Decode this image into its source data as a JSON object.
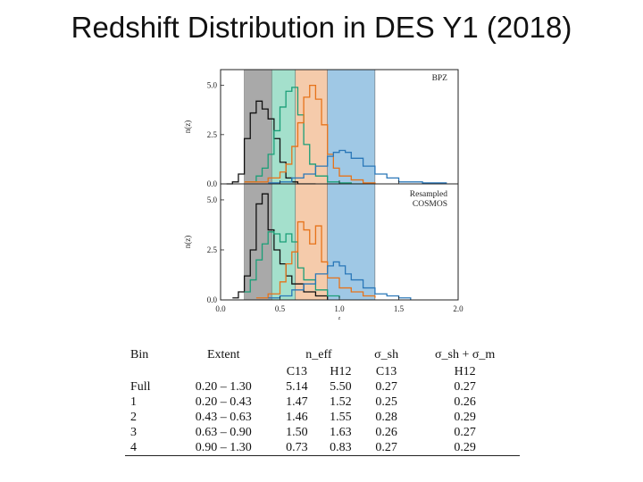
{
  "title": "Redshift Distribution in DES Y1 (2018)",
  "colors": {
    "bin1": "#111111",
    "bin2": "#1a9e77",
    "bin3": "#e6731a",
    "bin4": "#2a77b8",
    "band1": "#8c8c8c",
    "band2": "#86d6bb",
    "band3": "#f2b98f",
    "band4": "#7fb6dc"
  },
  "chart_data": [
    {
      "type": "line",
      "panel": "top",
      "label": "BPZ",
      "xlabel": "z",
      "ylabel": "n(z)",
      "xlim": [
        0.0,
        2.0
      ],
      "ylim": [
        0.0,
        5.8
      ],
      "xticks": [
        "0.0",
        "0.5",
        "1.0",
        "1.5",
        "2.0"
      ],
      "yticks": [
        "0.0",
        "2.5",
        "5.0"
      ],
      "bands": [
        {
          "bin": "1",
          "from": 0.2,
          "to": 0.43
        },
        {
          "bin": "2",
          "from": 0.43,
          "to": 0.63
        },
        {
          "bin": "3",
          "from": 0.63,
          "to": 0.9
        },
        {
          "bin": "4",
          "from": 0.9,
          "to": 1.3
        }
      ],
      "series": [
        {
          "name": "1",
          "x": [
            0.05,
            0.1,
            0.15,
            0.2,
            0.25,
            0.3,
            0.35,
            0.4,
            0.45,
            0.5,
            0.55,
            0.6,
            0.65,
            0.7,
            0.75,
            0.8
          ],
          "y": [
            0.0,
            0.1,
            0.5,
            2.3,
            3.6,
            4.2,
            3.8,
            3.3,
            2.3,
            1.1,
            0.3,
            0.1,
            0.0,
            0.0,
            0.0,
            0.0
          ]
        },
        {
          "name": "2",
          "x": [
            0.2,
            0.3,
            0.35,
            0.4,
            0.45,
            0.5,
            0.55,
            0.6,
            0.65,
            0.7,
            0.75,
            0.8,
            0.9,
            1.0,
            1.1,
            1.2
          ],
          "y": [
            0.1,
            0.4,
            0.8,
            1.5,
            2.7,
            3.9,
            4.7,
            4.9,
            3.5,
            2.0,
            1.0,
            0.4,
            0.1,
            0.05,
            0.0,
            0.0
          ]
        },
        {
          "name": "3",
          "x": [
            0.2,
            0.4,
            0.5,
            0.55,
            0.6,
            0.65,
            0.7,
            0.75,
            0.8,
            0.85,
            0.9,
            0.95,
            1.0,
            1.1,
            1.2,
            1.3
          ],
          "y": [
            0.1,
            0.3,
            0.6,
            1.0,
            1.9,
            3.1,
            4.4,
            5.0,
            4.3,
            3.0,
            1.5,
            0.8,
            0.4,
            0.2,
            0.05,
            0.0
          ]
        },
        {
          "name": "4",
          "x": [
            0.4,
            0.5,
            0.6,
            0.7,
            0.8,
            0.9,
            0.95,
            1.0,
            1.05,
            1.1,
            1.2,
            1.3,
            1.4,
            1.5,
            1.7,
            1.9
          ],
          "y": [
            0.05,
            0.1,
            0.3,
            0.5,
            0.9,
            1.4,
            1.6,
            1.7,
            1.6,
            1.3,
            0.9,
            0.5,
            0.3,
            0.1,
            0.05,
            0.0
          ]
        }
      ]
    },
    {
      "type": "line",
      "panel": "bottom",
      "label": "Resampled\nCOSMOS",
      "xlabel": "z",
      "ylabel": "n(z)",
      "xlim": [
        0.0,
        2.0
      ],
      "ylim": [
        0.0,
        5.8
      ],
      "xticks": [
        "0.0",
        "0.5",
        "1.0",
        "1.5",
        "2.0"
      ],
      "yticks": [
        "0.0",
        "2.5",
        "5.0"
      ],
      "bands": [
        {
          "bin": "1",
          "from": 0.2,
          "to": 0.43
        },
        {
          "bin": "2",
          "from": 0.43,
          "to": 0.63
        },
        {
          "bin": "3",
          "from": 0.63,
          "to": 0.9
        },
        {
          "bin": "4",
          "from": 0.9,
          "to": 1.3
        }
      ],
      "series": [
        {
          "name": "1",
          "x": [
            0.1,
            0.15,
            0.2,
            0.25,
            0.3,
            0.35,
            0.4,
            0.45,
            0.5,
            0.55,
            0.6,
            0.7,
            0.8,
            0.9
          ],
          "y": [
            0.1,
            0.4,
            1.2,
            2.5,
            4.8,
            5.3,
            3.5,
            2.5,
            1.8,
            1.2,
            0.8,
            0.4,
            0.2,
            0.0
          ]
        },
        {
          "name": "2",
          "x": [
            0.2,
            0.25,
            0.3,
            0.35,
            0.4,
            0.45,
            0.5,
            0.55,
            0.6,
            0.65,
            0.7,
            0.8,
            0.9,
            1.0
          ],
          "y": [
            0.4,
            1.0,
            2.0,
            2.8,
            3.4,
            3.3,
            2.9,
            3.3,
            2.9,
            1.6,
            1.0,
            0.5,
            0.2,
            0.1
          ]
        },
        {
          "name": "3",
          "x": [
            0.3,
            0.4,
            0.5,
            0.55,
            0.6,
            0.65,
            0.7,
            0.75,
            0.8,
            0.85,
            0.9,
            1.0,
            1.1,
            1.2,
            1.3
          ],
          "y": [
            0.1,
            0.3,
            0.9,
            1.8,
            2.4,
            3.9,
            3.5,
            2.8,
            3.7,
            1.9,
            1.1,
            0.6,
            0.4,
            0.2,
            0.1
          ]
        },
        {
          "name": "4",
          "x": [
            0.4,
            0.5,
            0.6,
            0.7,
            0.8,
            0.9,
            0.95,
            1.0,
            1.05,
            1.1,
            1.2,
            1.3,
            1.4,
            1.5,
            1.6
          ],
          "y": [
            0.1,
            0.2,
            0.5,
            0.8,
            1.3,
            1.7,
            1.9,
            1.7,
            1.3,
            1.0,
            0.6,
            0.3,
            0.2,
            0.1,
            0.0
          ]
        }
      ]
    },
    {
      "type": "table",
      "header_top": [
        "Bin",
        "Extent",
        "n_eff",
        "",
        "σ_sh",
        "σ_sh + σ_m"
      ],
      "header_sub": [
        "",
        "",
        "C13",
        "H12",
        "C13",
        "H12"
      ],
      "rows": [
        [
          "Full",
          "0.20 – 1.30",
          "5.14",
          "5.50",
          "0.27",
          "0.27"
        ],
        [
          "1",
          "0.20 – 0.43",
          "1.47",
          "1.52",
          "0.25",
          "0.26"
        ],
        [
          "2",
          "0.43 – 0.63",
          "1.46",
          "1.55",
          "0.28",
          "0.29"
        ],
        [
          "3",
          "0.63 – 0.90",
          "1.50",
          "1.63",
          "0.26",
          "0.27"
        ],
        [
          "4",
          "0.90 – 1.30",
          "0.73",
          "0.83",
          "0.27",
          "0.29"
        ]
      ]
    }
  ]
}
